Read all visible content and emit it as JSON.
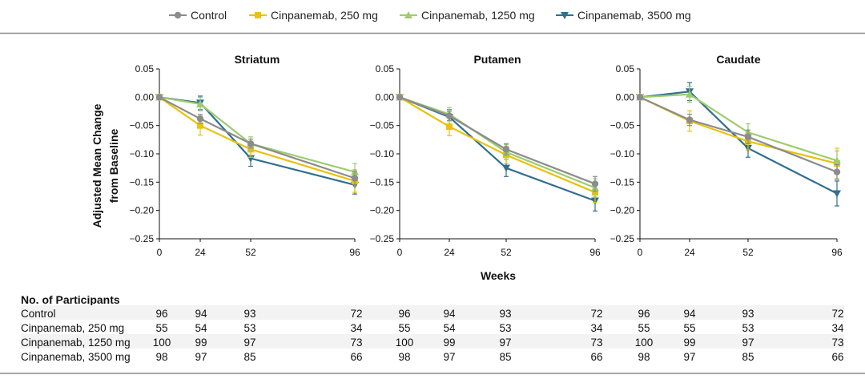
{
  "legend": [
    {
      "name": "Control",
      "color": "#8c8c8c",
      "marker": "circle"
    },
    {
      "name": "Cinpanemab, 250 mg",
      "color": "#e8c20c",
      "marker": "square"
    },
    {
      "name": "Cinpanemab, 1250 mg",
      "color": "#9dcc6f",
      "marker": "triangle-up"
    },
    {
      "name": "Cinpanemab, 3500 mg",
      "color": "#2f6f8f",
      "marker": "triangle-down"
    }
  ],
  "axis": {
    "ylabel_line1": "Adjusted Mean Change",
    "ylabel_line2": "from Baseline",
    "xlabel": "Weeks"
  },
  "chart_data": [
    {
      "type": "line",
      "title": "Striatum",
      "x": [
        0,
        24,
        52,
        96
      ],
      "xticks": [
        "0",
        "24",
        "52",
        "96"
      ],
      "ylim": [
        -0.25,
        0.05
      ],
      "yticks": [
        "0.05",
        "0.00",
        "−0.05",
        "−0.10",
        "−0.15",
        "−0.20",
        "−0.25"
      ],
      "series": [
        {
          "name": "Control",
          "values": [
            0.0,
            -0.038,
            -0.082,
            -0.143
          ],
          "err": [
            0,
            0.008,
            0.008,
            0.012
          ]
        },
        {
          "name": "Cinpanemab, 250 mg",
          "values": [
            0.0,
            -0.05,
            -0.092,
            -0.148
          ],
          "err": [
            0,
            0.017,
            0.014,
            0.02
          ]
        },
        {
          "name": "Cinpanemab, 1250 mg",
          "values": [
            0.0,
            -0.012,
            -0.082,
            -0.132
          ],
          "err": [
            0,
            0.012,
            0.012,
            0.015
          ]
        },
        {
          "name": "Cinpanemab, 3500 mg",
          "values": [
            0.0,
            -0.01,
            -0.108,
            -0.155
          ],
          "err": [
            0,
            0.012,
            0.014,
            0.016
          ]
        }
      ]
    },
    {
      "type": "line",
      "title": "Putamen",
      "x": [
        0,
        24,
        52,
        96
      ],
      "xticks": [
        "0",
        "24",
        "52",
        "96"
      ],
      "ylim": [
        -0.25,
        0.05
      ],
      "yticks": [
        "0.05",
        "0.00",
        "−0.05",
        "−0.10",
        "−0.15",
        "−0.20",
        "−0.25"
      ],
      "series": [
        {
          "name": "Control",
          "values": [
            0.0,
            -0.033,
            -0.092,
            -0.153
          ],
          "err": [
            0,
            0.008,
            0.01,
            0.013
          ]
        },
        {
          "name": "Cinpanemab, 250 mg",
          "values": [
            0.0,
            -0.052,
            -0.102,
            -0.168
          ],
          "err": [
            0,
            0.016,
            0.015,
            0.018
          ]
        },
        {
          "name": "Cinpanemab, 1250 mg",
          "values": [
            0.0,
            -0.03,
            -0.097,
            -0.16
          ],
          "err": [
            0,
            0.012,
            0.013,
            0.016
          ]
        },
        {
          "name": "Cinpanemab, 3500 mg",
          "values": [
            0.0,
            -0.035,
            -0.125,
            -0.183
          ],
          "err": [
            0,
            0.013,
            0.015,
            0.018
          ]
        }
      ]
    },
    {
      "type": "line",
      "title": "Caudate",
      "x": [
        0,
        24,
        52,
        96
      ],
      "xticks": [
        "0",
        "24",
        "52",
        "96"
      ],
      "ylim": [
        -0.25,
        0.05
      ],
      "yticks": [
        "0.05",
        "0.00",
        "−0.05",
        "−0.10",
        "−0.15",
        "−0.20",
        "−0.25"
      ],
      "series": [
        {
          "name": "Control",
          "values": [
            0.0,
            -0.04,
            -0.07,
            -0.132
          ],
          "err": [
            0,
            0.01,
            0.012,
            0.013
          ]
        },
        {
          "name": "Cinpanemab, 250 mg",
          "values": [
            0.0,
            -0.042,
            -0.078,
            -0.117
          ],
          "err": [
            0,
            0.018,
            0.015,
            0.027
          ]
        },
        {
          "name": "Cinpanemab, 1250 mg",
          "values": [
            0.0,
            0.005,
            -0.062,
            -0.112
          ],
          "err": [
            0,
            0.014,
            0.015,
            0.017
          ]
        },
        {
          "name": "Cinpanemab, 3500 mg",
          "values": [
            0.0,
            0.01,
            -0.09,
            -0.17
          ],
          "err": [
            0,
            0.016,
            0.016,
            0.022
          ]
        }
      ]
    }
  ],
  "participants": {
    "heading": "No. of Participants",
    "rows": [
      {
        "label": "Control",
        "counts": [
          [
            "96",
            "94",
            "93",
            "72"
          ],
          [
            "96",
            "94",
            "93",
            "72"
          ],
          [
            "96",
            "94",
            "93",
            "72"
          ]
        ]
      },
      {
        "label": "Cinpanemab, 250 mg",
        "counts": [
          [
            "55",
            "54",
            "53",
            "34"
          ],
          [
            "55",
            "54",
            "53",
            "34"
          ],
          [
            "55",
            "55",
            "53",
            "34"
          ]
        ]
      },
      {
        "label": "Cinpanemab, 1250 mg",
        "counts": [
          [
            "100",
            "99",
            "97",
            "73"
          ],
          [
            "100",
            "99",
            "97",
            "73"
          ],
          [
            "100",
            "99",
            "97",
            "73"
          ]
        ]
      },
      {
        "label": "Cinpanemab, 3500 mg",
        "counts": [
          [
            "98",
            "97",
            "85",
            "66"
          ],
          [
            "98",
            "97",
            "85",
            "66"
          ],
          [
            "98",
            "97",
            "85",
            "66"
          ]
        ]
      }
    ]
  }
}
